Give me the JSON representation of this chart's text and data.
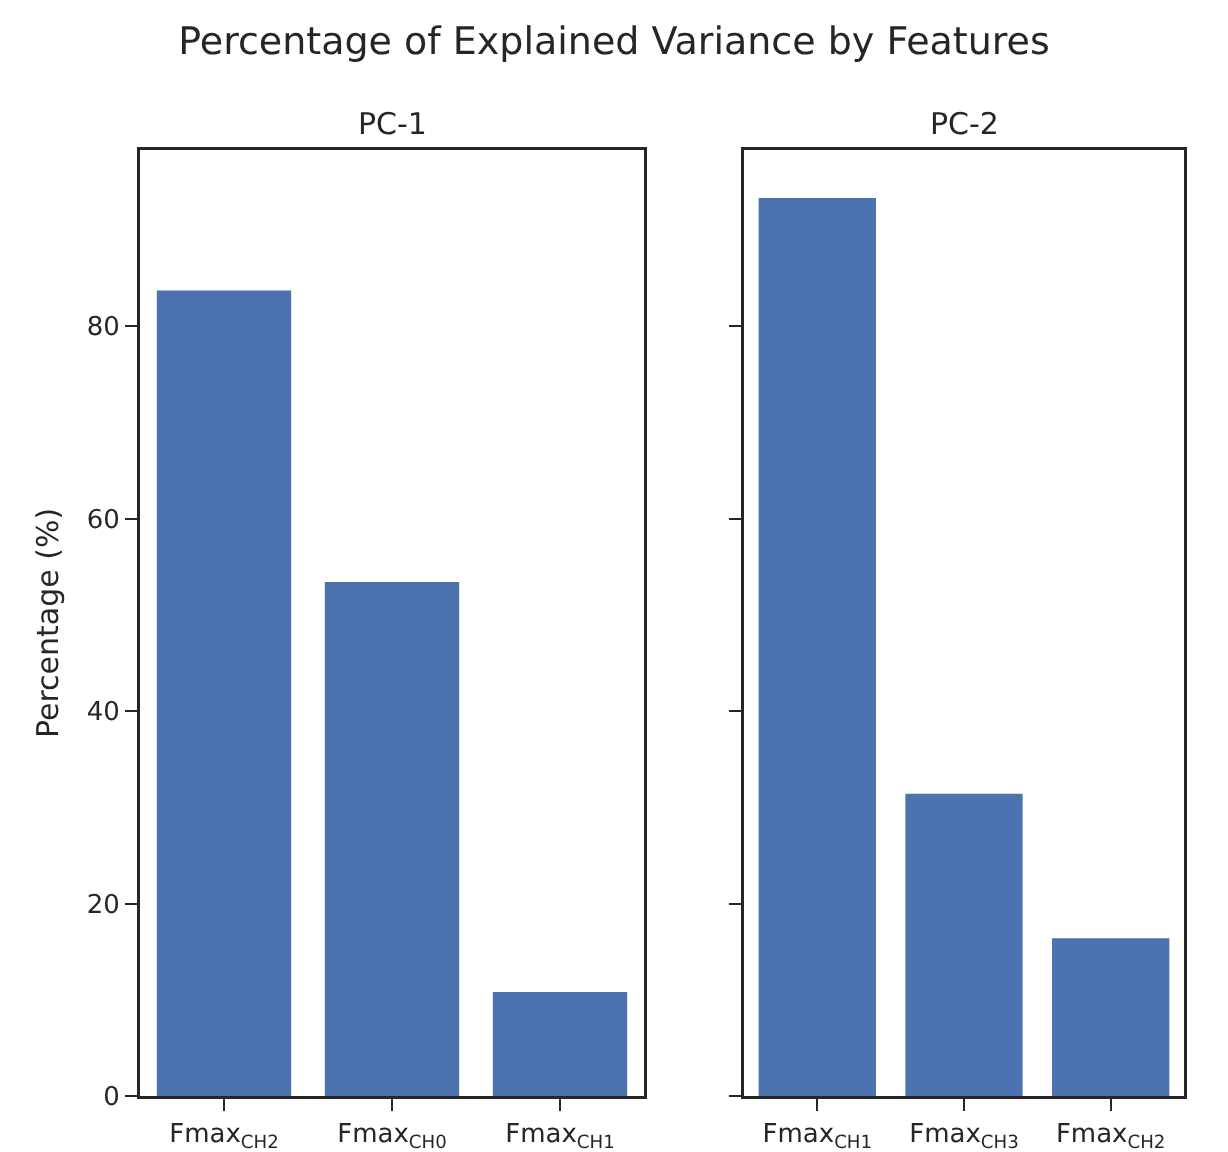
{
  "chart_data": [
    {
      "type": "bar",
      "title": "Percentage of Explained Variance by Features",
      "subtitle": "PC-1",
      "ylabel": "Percentage (%)",
      "categories": [
        "Fmax$_{CH2}$",
        "Fmax$_{CH0}$",
        "Fmax$_{CH1}$"
      ],
      "values": [
        83.7,
        53.4,
        10.8
      ],
      "color": "#4c72b0",
      "ylim": [
        0,
        98.3
      ],
      "yticks": [
        0,
        20,
        40,
        60,
        80
      ]
    },
    {
      "type": "bar",
      "subtitle": "PC-2",
      "categories": [
        "Fmax$_{CH1}$",
        "Fmax$_{CH3}$",
        "Fmax$_{CH2}$"
      ],
      "values": [
        93.3,
        31.4,
        16.4
      ],
      "color": "#4c72b0",
      "ylim": [
        0,
        98.3
      ],
      "yticks": [
        0,
        20,
        40,
        60,
        80
      ],
      "tick_labels": "x"
    }
  ]
}
